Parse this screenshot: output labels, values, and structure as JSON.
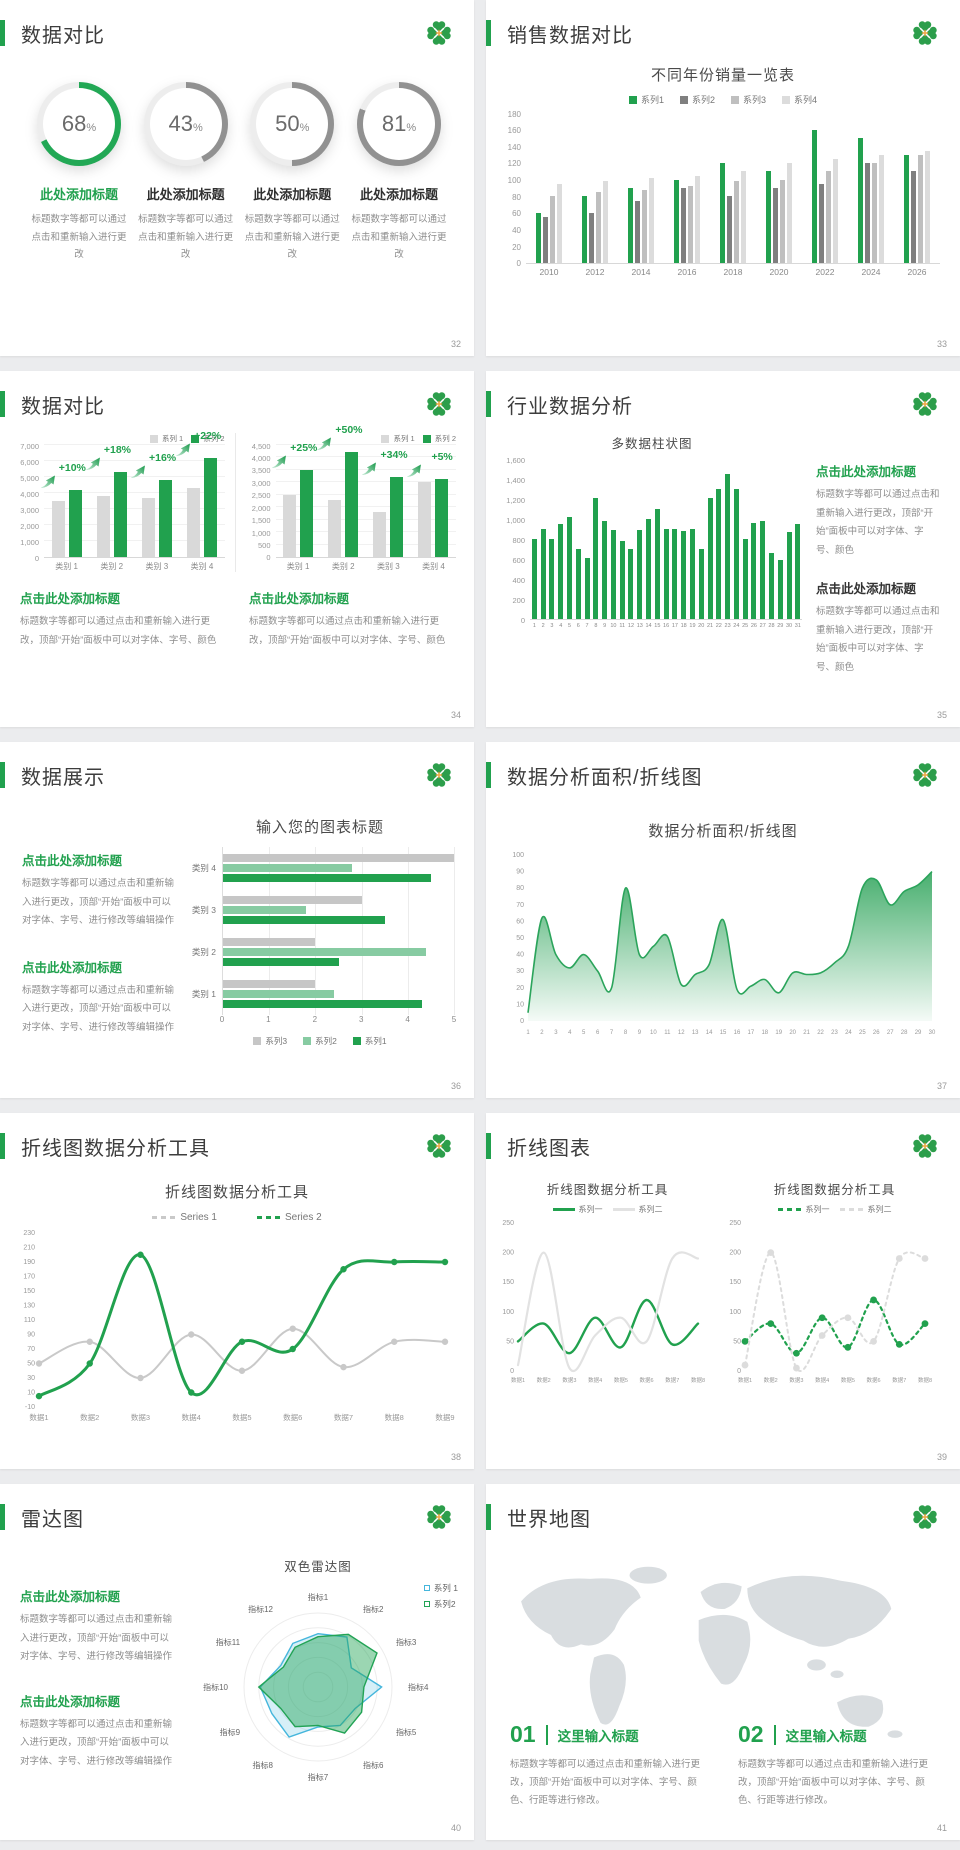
{
  "colors": {
    "green": "#21A14E",
    "lightGreen": "#87CBA2",
    "grayDark": "#7F7F7F",
    "gray": "#BFBFBF",
    "grayLight": "#D9D9D9",
    "blue": "#45B6DC",
    "orange": "#F2A33C"
  },
  "slides": [
    {
      "title": "数据对比",
      "page": "32",
      "cards": [
        {
          "pct": 68,
          "unit": "%",
          "heading": "此处添加标题",
          "desc": "标题数字等都可以通过点击和重新输入进行更改",
          "accent": true
        },
        {
          "pct": 43,
          "unit": "%",
          "heading": "此处添加标题",
          "desc": "标题数字等都可以通过点击和重新输入进行更改",
          "accent": false
        },
        {
          "pct": 50,
          "unit": "%",
          "heading": "此处添加标题",
          "desc": "标题数字等都可以通过点击和重新输入进行更改",
          "accent": false
        },
        {
          "pct": 81,
          "unit": "%",
          "heading": "此处添加标题",
          "desc": "标题数字等都可以通过点击和重新输入进行更改",
          "accent": false
        }
      ]
    },
    {
      "title": "销售数据对比",
      "page": "33"
    },
    {
      "title": "数据对比",
      "page": "34",
      "blocks": [
        {
          "heading": "点击此处添加标题",
          "body": "标题数字等都可以通过点击和重新输入进行更改，顶部“开始”面板中可以对字体、字号、颜色"
        },
        {
          "heading": "点击此处添加标题",
          "body": "标题数字等都可以通过点击和重新输入进行更改，顶部“开始”面板中可以对字体、字号、颜色"
        }
      ]
    },
    {
      "title": "行业数据分析",
      "page": "35",
      "blocks": [
        {
          "heading": "点击此处添加标题",
          "body": "标题数字等都可以通过点击和重新输入进行更改，顶部“开始”面板中可以对字体、字号、颜色"
        },
        {
          "heading": "点击此处添加标题",
          "body": "标题数字等都可以通过点击和重新输入进行更改，顶部“开始”面板中可以对字体、字号、颜色"
        }
      ]
    },
    {
      "title": "数据展示",
      "page": "36",
      "blocks": [
        {
          "heading": "点击此处添加标题",
          "body": "标题数字等都可以通过点击和重新输入进行更改，顶部“开始”面板中可以对字体、字号、进行修改等编辑操作"
        },
        {
          "heading": "点击此处添加标题",
          "body": "标题数字等都可以通过点击和重新输入进行更改，顶部“开始”面板中可以对字体、字号、进行修改等编辑操作"
        }
      ]
    },
    {
      "title": "数据分析面积/折线图",
      "page": "37"
    },
    {
      "title": "折线图数据分析工具",
      "page": "38"
    },
    {
      "title": "折线图表",
      "page": "39"
    },
    {
      "title": "雷达图",
      "page": "40",
      "blocks": [
        {
          "heading": "点击此处添加标题",
          "body": "标题数字等都可以通过点击和重新输入进行更改，顶部“开始”面板中可以对字体、字号、进行修改等编辑操作"
        },
        {
          "heading": "点击此处添加标题",
          "body": "标题数字等都可以通过点击和重新输入进行更改，顶部“开始”面板中可以对字体、字号、进行修改等编辑操作"
        }
      ]
    },
    {
      "title": "世界地图",
      "page": "41",
      "items": [
        {
          "num": "01",
          "heading": "这里输入标题",
          "body": "标题数字等都可以通过点击和重新输入进行更改，顶部“开始”面板中可以对字体、字号、颜色、行距等进行修改。"
        },
        {
          "num": "02",
          "heading": "这里输入标题",
          "body": "标题数字等都可以通过点击和重新输入进行更改，顶部“开始”面板中可以对字体、字号、颜色、行距等进行修改。"
        }
      ]
    }
  ],
  "chart_data": {
    "sales": {
      "type": "bar",
      "title": "不同年份销量一览表",
      "categories": [
        "2010",
        "2012",
        "2014",
        "2016",
        "2018",
        "2020",
        "2022",
        "2024",
        "2026"
      ],
      "series": [
        {
          "name": "系列1",
          "color": "#21A14E",
          "values": [
            60,
            80,
            90,
            100,
            120,
            110,
            160,
            150,
            130
          ]
        },
        {
          "name": "系列2",
          "color": "#7F7F7F",
          "values": [
            55,
            60,
            75,
            90,
            80,
            90,
            95,
            120,
            110
          ]
        },
        {
          "name": "系列3",
          "color": "#BFBFBF",
          "values": [
            80,
            85,
            88,
            92,
            98,
            100,
            110,
            120,
            130
          ]
        },
        {
          "name": "系列4",
          "color": "#DCDCDC",
          "values": [
            95,
            98,
            102,
            105,
            110,
            120,
            125,
            130,
            135
          ]
        }
      ],
      "ylim": [
        0,
        180
      ],
      "ytick": 20,
      "legend_position": "top",
      "grid": false
    },
    "compare_left": {
      "type": "bar",
      "categories": [
        "类别 1",
        "类别 2",
        "类别 3",
        "类别 4"
      ],
      "series": [
        {
          "name": "系列 1",
          "color": "#D9D9D9",
          "values": [
            3500,
            3800,
            3700,
            4300
          ]
        },
        {
          "name": "系列 2",
          "color": "#21A14E",
          "values": [
            4200,
            5300,
            4800,
            6200
          ]
        }
      ],
      "labels": [
        "+10%",
        "+18%",
        "+16%",
        "+22%"
      ],
      "ylim": [
        0,
        7000
      ],
      "ytick": 1000,
      "grid": true
    },
    "compare_right": {
      "type": "bar",
      "categories": [
        "类别 1",
        "类别 2",
        "类别 3",
        "类别 4"
      ],
      "series": [
        {
          "name": "系列 1",
          "color": "#D9D9D9",
          "values": [
            2500,
            2300,
            1800,
            3000
          ]
        },
        {
          "name": "系列 2",
          "color": "#21A14E",
          "values": [
            3500,
            4200,
            3200,
            3150
          ]
        }
      ],
      "labels": [
        "+25%",
        "+50%",
        "+34%",
        "+5%"
      ],
      "ylim": [
        0,
        4500
      ],
      "ytick": 500,
      "grid": true
    },
    "industry": {
      "type": "bar",
      "title": "多数据柱状图",
      "categories": [
        "1",
        "2",
        "3",
        "4",
        "5",
        "6",
        "7",
        "8",
        "9",
        "10",
        "11",
        "12",
        "13",
        "14",
        "15",
        "16",
        "17",
        "18",
        "19",
        "20",
        "21",
        "22",
        "23",
        "24",
        "25",
        "26",
        "27",
        "28",
        "29",
        "30",
        "31"
      ],
      "values": [
        800,
        900,
        800,
        950,
        1020,
        700,
        610,
        1210,
        980,
        890,
        780,
        700,
        890,
        1000,
        1100,
        900,
        900,
        880,
        900,
        700,
        1210,
        1300,
        1450,
        1300,
        800,
        960,
        980,
        660,
        590,
        870,
        950
      ],
      "color": "#21A14E",
      "ylim": [
        0,
        1600
      ],
      "ytick": 200,
      "grid": false
    },
    "hbar": {
      "type": "bar-horizontal",
      "title": "输入您的图表标题",
      "categories": [
        "类别 4",
        "类别 3",
        "类别 2",
        "类别 1"
      ],
      "series": [
        {
          "name": "系列3",
          "color": "#C6C6C6",
          "values": [
            5,
            3,
            2,
            2
          ]
        },
        {
          "name": "系列2",
          "color": "#87CBA2",
          "values": [
            2.8,
            1.8,
            4.4,
            2.4
          ]
        },
        {
          "name": "系列1",
          "color": "#21A14E",
          "values": [
            4.5,
            3.5,
            2.5,
            4.3
          ]
        }
      ],
      "xlim": [
        0,
        5
      ],
      "xtick": 1,
      "legend_position": "bottom",
      "grid": true
    },
    "area": {
      "type": "area",
      "title": "数据分析面积/折线图",
      "x": [
        "1",
        "2",
        "3",
        "4",
        "5",
        "6",
        "7",
        "8",
        "9",
        "10",
        "11",
        "12",
        "13",
        "14",
        "15",
        "16",
        "17",
        "18",
        "19",
        "20",
        "21",
        "22",
        "23",
        "24",
        "25",
        "26",
        "27",
        "28",
        "29",
        "30"
      ],
      "values": [
        5,
        62,
        40,
        32,
        40,
        30,
        20,
        80,
        40,
        45,
        51,
        22,
        28,
        34,
        61,
        19,
        21,
        25,
        17,
        29,
        28,
        29,
        35,
        45,
        80,
        85,
        70,
        78,
        82,
        90
      ],
      "color": "#2BA45B",
      "ylim": [
        0,
        100
      ],
      "ytick": 10
    },
    "line_tools": {
      "type": "line",
      "title": "折线图数据分析工具",
      "x": [
        "数据1",
        "数据2",
        "数据3",
        "数据4",
        "数据5",
        "数据6",
        "数据7",
        "数据8",
        "数据9"
      ],
      "series": [
        {
          "name": "Series 1",
          "color": "#C9C9C9",
          "values": [
            50,
            80,
            30,
            90,
            40,
            98,
            45,
            80,
            80
          ]
        },
        {
          "name": "Series 2",
          "color": "#21A14E",
          "values": [
            5,
            50,
            200,
            10,
            80,
            70,
            180,
            190,
            190
          ]
        }
      ],
      "ylim": [
        -10,
        230
      ],
      "ytick": 20,
      "legend_position": "top"
    },
    "mini_left": {
      "type": "line",
      "title": "折线图数据分析工具",
      "x": [
        "数据1",
        "数据2",
        "数据3",
        "数据4",
        "数据5",
        "数据6",
        "数据7",
        "数据8"
      ],
      "series": [
        {
          "name": "系列一",
          "color": "#21A14E",
          "values": [
            50,
            80,
            30,
            90,
            40,
            120,
            45,
            80
          ]
        },
        {
          "name": "系列二",
          "color": "#E2E2E2",
          "values": [
            10,
            200,
            5,
            60,
            90,
            50,
            190,
            190
          ]
        }
      ],
      "ylim": [
        0,
        250
      ],
      "ytick": 50,
      "line_style": "solid"
    },
    "mini_right": {
      "type": "line",
      "title": "折线图数据分析工具",
      "x": [
        "数据1",
        "数据2",
        "数据3",
        "数据4",
        "数据5",
        "数据6",
        "数据7",
        "数据8"
      ],
      "series": [
        {
          "name": "系列一",
          "color": "#21A14E",
          "values": [
            50,
            80,
            30,
            90,
            40,
            120,
            45,
            80
          ]
        },
        {
          "name": "系列二",
          "color": "#DCDCDC",
          "values": [
            10,
            200,
            5,
            60,
            90,
            50,
            190,
            190
          ]
        }
      ],
      "ylim": [
        0,
        250
      ],
      "ytick": 50,
      "line_style": "dashed-markers"
    },
    "radar": {
      "type": "radar",
      "title": "双色雷达图",
      "axes": [
        "指标1",
        "指标2",
        "指标3",
        "指标4",
        "指标5",
        "指标6",
        "指标7",
        "指标8",
        "指标9",
        "指标10",
        "指标11",
        "指标12"
      ],
      "series": [
        {
          "name": "系列 1",
          "color": "#45B6DC",
          "values": [
            3.6,
            3.9,
            2.6,
            4.3,
            2.9,
            3.0,
            2.7,
            3.9,
            3.6,
            3.9,
            2.9,
            3.4
          ]
        },
        {
          "name": "系列2",
          "color": "#22A355",
          "values": [
            3.4,
            4.1,
            4.6,
            3.1,
            3.4,
            3.6,
            2.6,
            3.1,
            2.9,
            4.0,
            2.7,
            3.1
          ]
        }
      ],
      "rmax": 5
    }
  }
}
